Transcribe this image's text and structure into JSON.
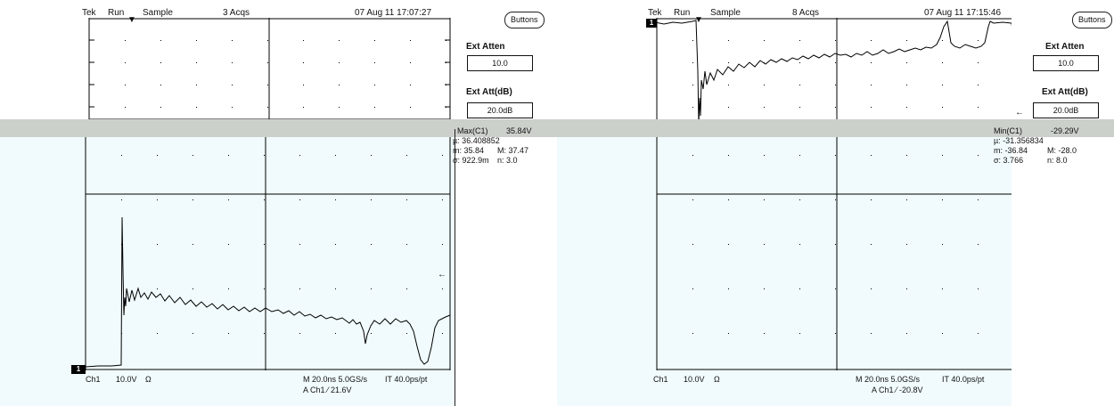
{
  "scopes": [
    {
      "id": "left",
      "header": {
        "brand": "Tek",
        "run": "Run",
        "mode": "Sample",
        "acqs": "3 Acqs",
        "datetime": "07 Aug 11 17:07:27"
      },
      "side_panel": {
        "buttons_label": "Buttons",
        "ext_atten_label": "Ext Atten",
        "ext_atten_value": "10.0",
        "ext_att_db_label": "Ext Att(dB)",
        "ext_att_db_value": "20.0dB"
      },
      "measurement": {
        "title": "Max(C1)",
        "title_value": "35.84V",
        "mu": "µ: 36.408852",
        "m": "m: 35.84",
        "M": "M: 37.47",
        "sigma": "σ: 922.9m",
        "n": "n: 3.0"
      },
      "bottom": {
        "marker": "1",
        "ch": "Ch1",
        "volts_div": "10.0V",
        "omega": "Ω",
        "timebase": "M 20.0ns 5.0GS/s",
        "it": "IT 40.0ps/pt",
        "trigger": "A Ch1 ⁄ 21.6V"
      }
    },
    {
      "id": "right",
      "header": {
        "brand": "Tek",
        "run": "Run",
        "mode": "Sample",
        "acqs": "8 Acqs",
        "datetime": "07 Aug 11 17:15:46"
      },
      "side_panel": {
        "buttons_label": "Buttons",
        "ext_atten_label": "Ext Atten",
        "ext_atten_value": "10.0",
        "ext_att_db_label": "Ext Att(dB)",
        "ext_att_db_value": "20.0dB"
      },
      "measurement": {
        "title": "Min(C1)",
        "title_value": "-29.29V",
        "mu": "µ: -31.356834",
        "m": "m: -36.84",
        "M": "M: -28.0",
        "sigma": "σ: 3.766",
        "n": "n: 8.0"
      },
      "bottom": {
        "marker": "1",
        "ch": "Ch1",
        "volts_div": "10.0V",
        "omega": "Ω",
        "timebase": "M 20.0ns 5.0GS/s",
        "it": "IT 40.0ps/pt",
        "trigger": "A Ch1 ⁄ -20.8V"
      }
    }
  ],
  "colors": {
    "band": "#cbd0cb",
    "screen_lower": "#f1fbfd",
    "trace": "#000000",
    "grid": "#000000"
  }
}
